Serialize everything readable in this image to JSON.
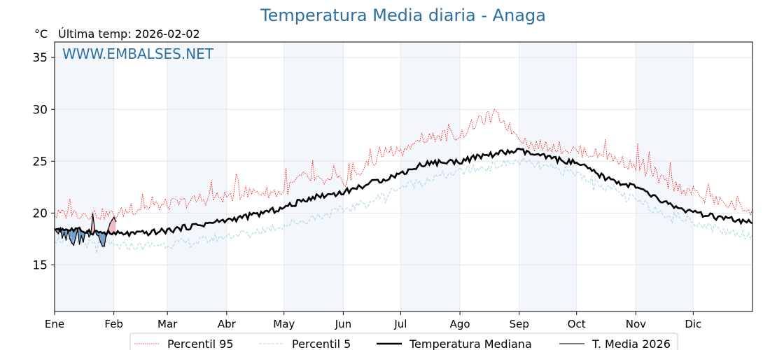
{
  "chart_data": {
    "type": "line",
    "title": "Temperatura Media diaria - Anaga",
    "unit_label": "°C",
    "subtitle": "Última temp: 2026-02-02",
    "watermark": "WWW.EMBALSES.NET",
    "x_domain": [
      1,
      366
    ],
    "ylim": [
      10.5,
      36.5
    ],
    "y_ticks": [
      15,
      20,
      25,
      30,
      35
    ],
    "month_labels": [
      "Ene",
      "Feb",
      "Mar",
      "Abr",
      "May",
      "Jun",
      "Jul",
      "Ago",
      "Sep",
      "Oct",
      "Nov",
      "Dic"
    ],
    "month_start_days": [
      1,
      32,
      60,
      91,
      121,
      152,
      182,
      213,
      244,
      274,
      305,
      335
    ],
    "shaded_bands": [
      [
        1,
        32
      ],
      [
        60,
        91
      ],
      [
        121,
        152
      ],
      [
        182,
        213
      ],
      [
        244,
        274
      ],
      [
        305,
        335
      ]
    ],
    "grid": true,
    "legend_position": "bottom",
    "series": [
      {
        "name": "Percentil 95",
        "color": "#ff0000",
        "style": "dotted",
        "anchors_x": [
          1,
          15,
          32,
          45,
          60,
          75,
          91,
          105,
          121,
          130,
          140,
          152,
          165,
          175,
          182,
          190,
          200,
          213,
          220,
          225,
          230,
          235,
          240,
          244,
          250,
          260,
          274,
          290,
          305,
          320,
          335,
          350,
          366
        ],
        "anchors_y": [
          19.8,
          20.0,
          19.8,
          20.5,
          20.8,
          21.2,
          21.6,
          22.0,
          22.0,
          23.5,
          23.0,
          23.0,
          24.5,
          26.0,
          26.0,
          26.5,
          27.5,
          27.5,
          28.5,
          29.0,
          29.5,
          29.0,
          28.0,
          27.5,
          26.5,
          26.5,
          26.0,
          25.5,
          24.5,
          23.0,
          22.0,
          21.0,
          20.3
        ]
      },
      {
        "name": "Percentil 5",
        "color": "#add8e6",
        "style": "dashed",
        "anchors_x": [
          1,
          20,
          32,
          45,
          60,
          75,
          91,
          105,
          121,
          135,
          152,
          165,
          182,
          195,
          213,
          230,
          244,
          255,
          274,
          290,
          305,
          320,
          335,
          350,
          366
        ],
        "anchors_y": [
          17.5,
          17.0,
          16.8,
          16.8,
          17.0,
          17.2,
          17.8,
          18.2,
          18.8,
          19.5,
          20.3,
          21.0,
          22.5,
          23.2,
          24.0,
          24.5,
          25.0,
          24.5,
          23.8,
          22.5,
          21.2,
          20.0,
          19.2,
          18.3,
          17.8
        ]
      },
      {
        "name": "Temperatura Mediana",
        "color": "#000000",
        "style": "solid-thick",
        "anchors_x": [
          1,
          15,
          32,
          45,
          60,
          75,
          91,
          105,
          121,
          135,
          152,
          165,
          182,
          195,
          213,
          225,
          235,
          244,
          255,
          274,
          290,
          305,
          320,
          335,
          350,
          366
        ],
        "anchors_y": [
          18.5,
          18.3,
          18.0,
          18.0,
          18.3,
          18.8,
          19.3,
          19.8,
          20.5,
          21.5,
          22.0,
          22.8,
          23.8,
          24.8,
          25.0,
          25.5,
          25.8,
          26.0,
          25.5,
          24.8,
          23.3,
          22.5,
          21.0,
          20.0,
          19.5,
          19.0
        ]
      },
      {
        "name": "T. Media 2026",
        "color": "#000000",
        "style": "solid-thin",
        "x": [
          1,
          2,
          3,
          4,
          5,
          6,
          7,
          8,
          9,
          10,
          11,
          12,
          13,
          14,
          15,
          16,
          17,
          18,
          19,
          20,
          21,
          22,
          23,
          24,
          25,
          26,
          27,
          28,
          29,
          30,
          31,
          32,
          33
        ],
        "values": [
          18.5,
          18.2,
          18.0,
          18.6,
          17.6,
          18.1,
          17.4,
          18.3,
          17.5,
          17.1,
          16.9,
          17.6,
          18.4,
          17.0,
          17.8,
          17.2,
          18.1,
          18.3,
          17.7,
          18.0,
          19.9,
          18.4,
          17.9,
          17.8,
          17.2,
          16.8,
          16.8,
          17.9,
          18.4,
          19.0,
          19.3,
          19.6,
          19.2
        ]
      }
    ]
  }
}
